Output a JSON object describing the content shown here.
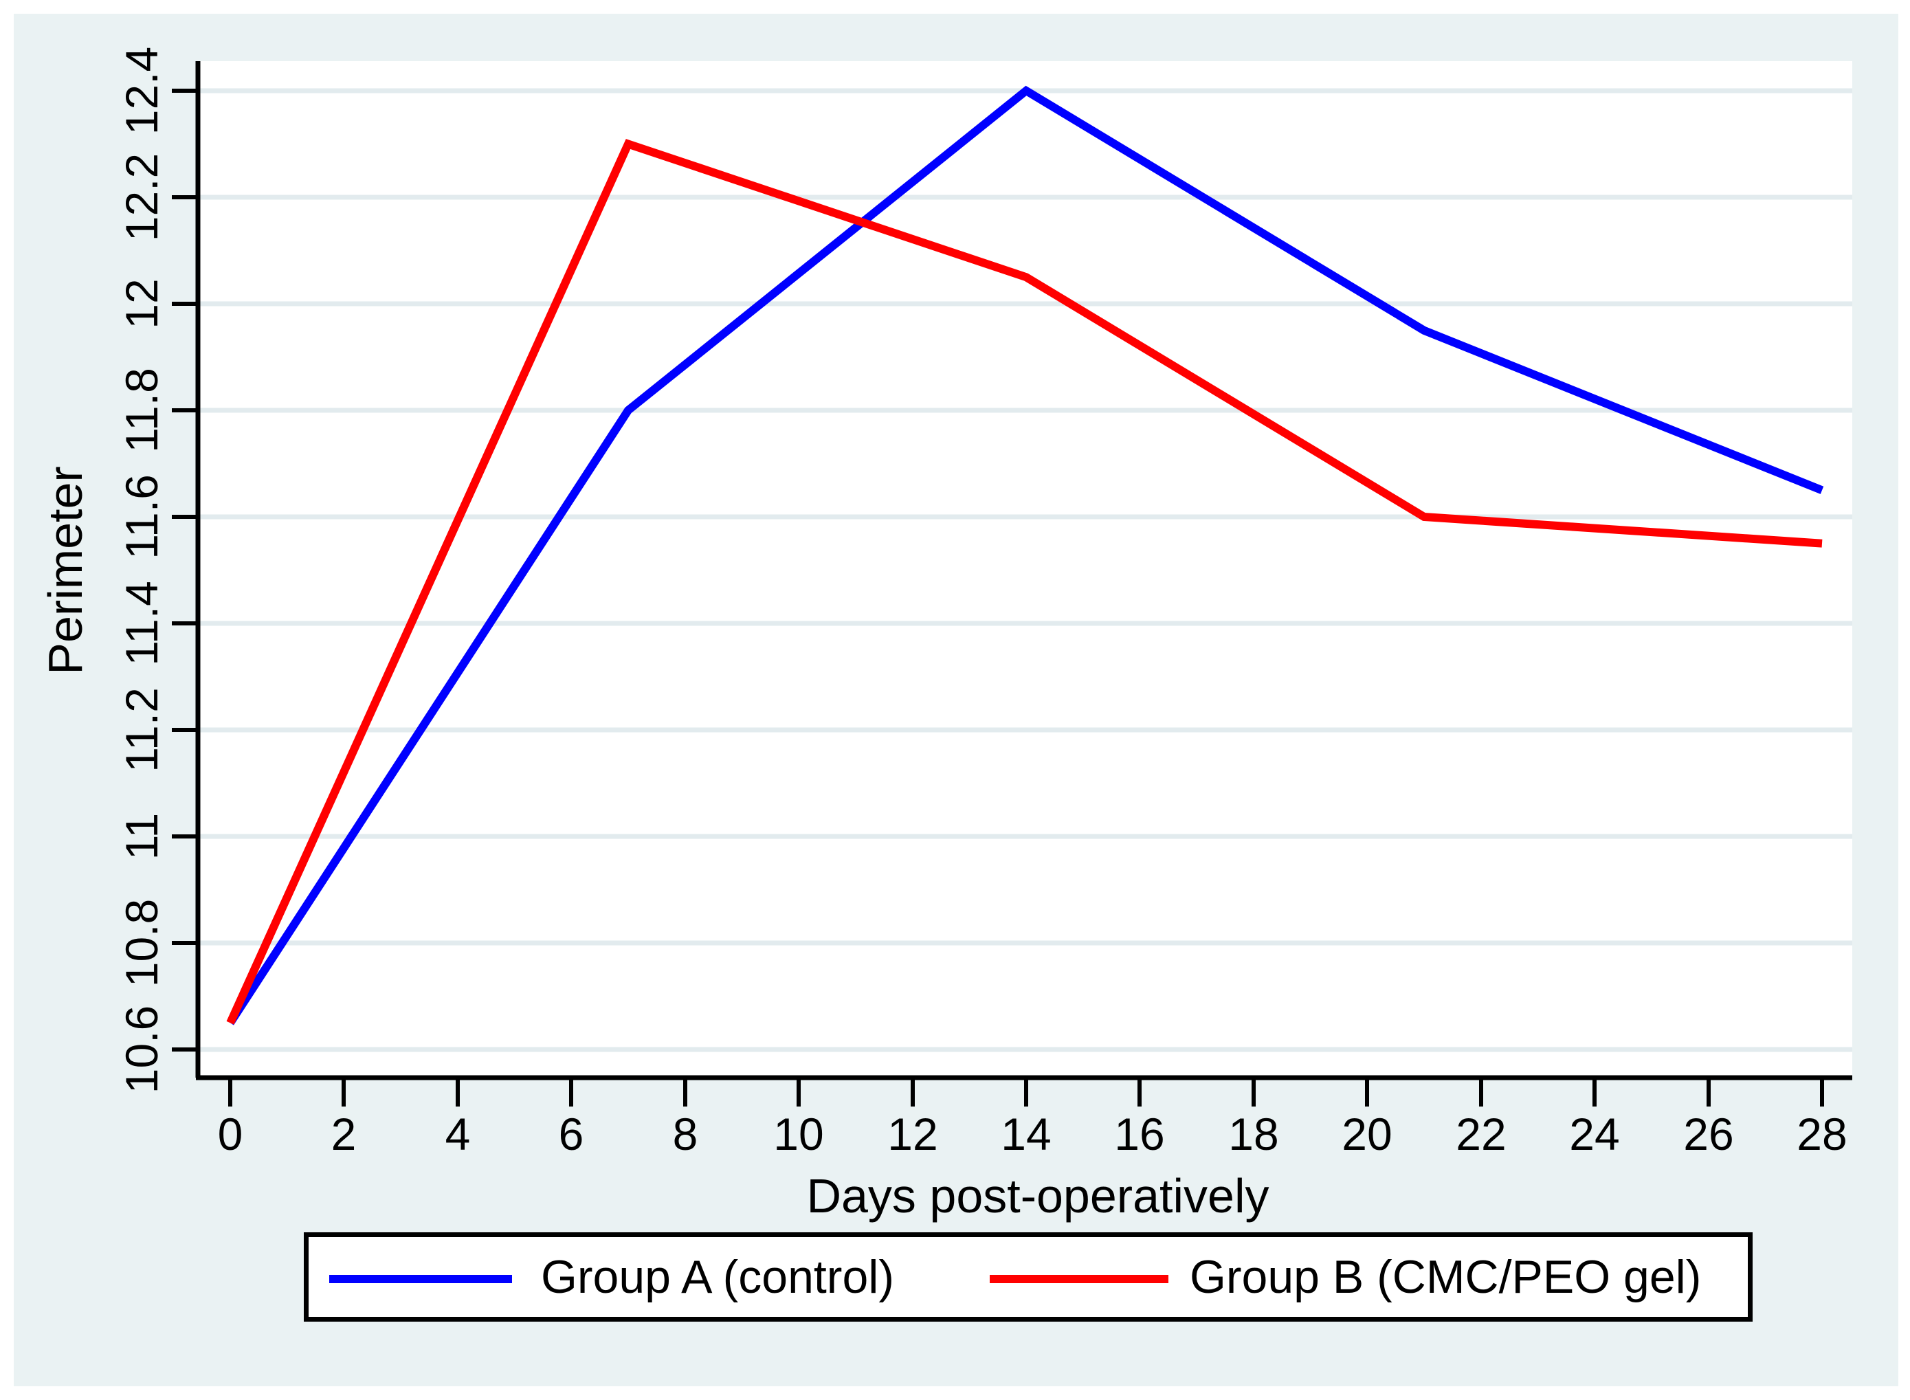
{
  "chart_data": {
    "type": "line",
    "x": [
      0,
      7,
      14,
      21,
      28
    ],
    "series": [
      {
        "name": "Group A (control)",
        "color": "#0000ff",
        "values": [
          10.65,
          11.8,
          12.4,
          11.95,
          11.65
        ]
      },
      {
        "name": "Group B (CMC/PEO gel)",
        "color": "#ff0000",
        "values": [
          10.65,
          12.3,
          12.05,
          11.6,
          11.55
        ]
      }
    ],
    "title": "",
    "xlabel": "Days post-operatively",
    "ylabel": "Perimeter",
    "x_tick_labels": [
      "0",
      "2",
      "4",
      "6",
      "8",
      "10",
      "12",
      "14",
      "16",
      "18",
      "20",
      "22",
      "24",
      "26",
      "28"
    ],
    "y_tick_labels": [
      "10.6",
      "10.8",
      "11",
      "11.2",
      "11.4",
      "11.6",
      "11.8",
      "12",
      "12.2",
      "12.4"
    ],
    "xlim": [
      -0.57,
      28.53
    ],
    "ylim": [
      10.54,
      12.46
    ],
    "grid": true,
    "legend_position": "bottom"
  },
  "colors": {
    "background": "#eaf2f3",
    "plot_background": "#ffffff",
    "gridline": "#e2ebee",
    "axis": "#000000",
    "legend_border": "#000000",
    "group_a": "#0000ff",
    "group_b": "#ff0000"
  }
}
